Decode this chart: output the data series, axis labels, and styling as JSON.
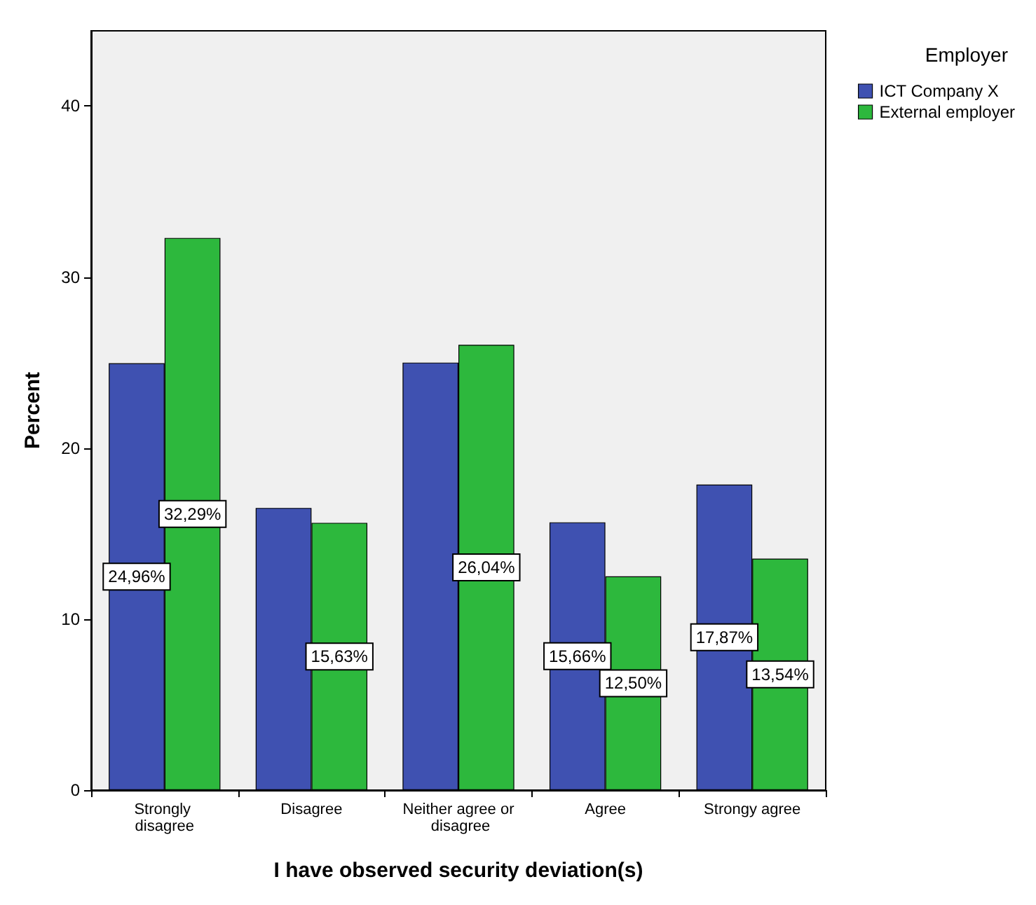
{
  "chart_data": {
    "type": "bar",
    "xlabel": "I have observed security deviation(s)",
    "ylabel": "Percent",
    "legend_title": "Employer",
    "legend": "right",
    "categories": [
      "Strongly disagree",
      "Disagree",
      "Neither agree or disagree",
      "Agree",
      "Strongy agree"
    ],
    "series": [
      {
        "name": "ICT Company X",
        "color": "#3f51b1",
        "values": [
          24.96,
          16.5,
          25,
          15.66,
          17.87
        ],
        "value_labels": [
          "24,96%",
          null,
          null,
          "15,66%",
          "17,87%"
        ]
      },
      {
        "name": "External employer",
        "color": "#2db83d",
        "values": [
          32.29,
          15.63,
          26.04,
          12.5,
          13.54
        ],
        "value_labels": [
          "32,29%",
          "15,63%",
          "26,04%",
          "12,50%",
          "13,54%"
        ]
      }
    ],
    "ylim": [
      0,
      44.4
    ],
    "yticks": [
      0,
      10,
      20,
      30,
      40
    ],
    "grid": false
  }
}
